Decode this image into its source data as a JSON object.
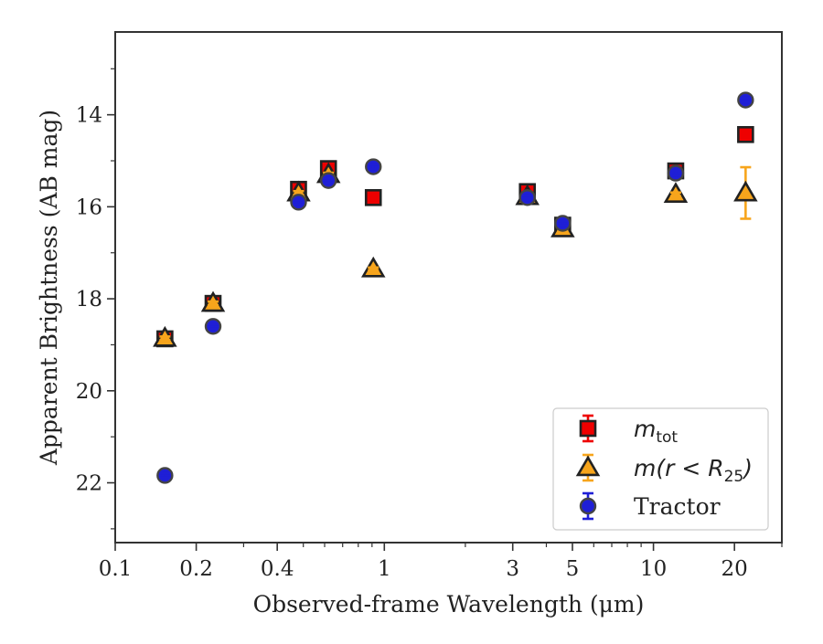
{
  "chart_data": {
    "type": "scatter",
    "xlabel": "Observed-frame Wavelength (μm)",
    "ylabel": "Apparent Brightness (AB mag)",
    "x_scale": "log",
    "y_inverted": true,
    "xlim": [
      0.1,
      30
    ],
    "ylim": [
      23.3,
      12.2
    ],
    "x_ticks": [
      {
        "value": 0.1,
        "label": "0.1"
      },
      {
        "value": 0.2,
        "label": "0.2"
      },
      {
        "value": 0.4,
        "label": "0.4"
      },
      {
        "value": 1,
        "label": "1"
      },
      {
        "value": 3,
        "label": "3"
      },
      {
        "value": 5,
        "label": "5"
      },
      {
        "value": 10,
        "label": "10"
      },
      {
        "value": 20,
        "label": "20"
      }
    ],
    "x_minor_ticks": [
      0.3,
      0.5,
      0.6,
      0.7,
      0.8,
      0.9,
      2,
      4,
      6,
      7,
      8,
      9,
      30
    ],
    "y_ticks": [
      {
        "value": 14,
        "label": "14"
      },
      {
        "value": 16,
        "label": "16"
      },
      {
        "value": 18,
        "label": "18"
      },
      {
        "value": 20,
        "label": "20"
      },
      {
        "value": 22,
        "label": "22"
      }
    ],
    "y_minor_ticks": [
      13,
      15,
      17,
      19,
      21,
      23
    ],
    "grid": false,
    "legend_position": "lower-right",
    "series": [
      {
        "name": "m_tot",
        "legend_main": "m",
        "legend_sub": "tot",
        "marker": "square",
        "color": "#ee0000",
        "points": [
          {
            "x": 0.153,
            "y": 18.87,
            "err": 0.04
          },
          {
            "x": 0.231,
            "y": 18.1,
            "err": 0.04
          },
          {
            "x": 0.48,
            "y": 15.62,
            "err": 0.04
          },
          {
            "x": 0.62,
            "y": 15.17,
            "err": 0.04
          },
          {
            "x": 0.91,
            "y": 15.8,
            "err": 0.03
          },
          {
            "x": 3.4,
            "y": 15.67,
            "err": 0.04
          },
          {
            "x": 4.6,
            "y": 16.4,
            "err": 0.04
          },
          {
            "x": 12.1,
            "y": 15.22,
            "err": 0.04
          },
          {
            "x": 22.0,
            "y": 14.43,
            "err": 0.03
          }
        ]
      },
      {
        "name": "m(r < R_25)",
        "legend_main": "m(r < R",
        "legend_sub": "25",
        "legend_close": ")",
        "marker": "triangle",
        "color": "#f7a51c",
        "points": [
          {
            "x": 0.153,
            "y": 18.86,
            "err": 0.04
          },
          {
            "x": 0.231,
            "y": 18.1,
            "err": 0.04
          },
          {
            "x": 0.48,
            "y": 15.7,
            "err": 0.04
          },
          {
            "x": 0.62,
            "y": 15.3,
            "err": 0.04
          },
          {
            "x": 0.91,
            "y": 17.35,
            "err": 0.03
          },
          {
            "x": 3.4,
            "y": 15.78,
            "err": 0.04
          },
          {
            "x": 4.6,
            "y": 16.48,
            "err": 0.04
          },
          {
            "x": 12.1,
            "y": 15.73,
            "err": 0.04
          },
          {
            "x": 22.0,
            "y": 15.7,
            "err": 0.56
          }
        ]
      },
      {
        "name": "Tractor",
        "legend_main": "Tractor",
        "marker": "circle",
        "color": "#1f1fd6",
        "points": [
          {
            "x": 0.153,
            "y": 21.84,
            "err": 0.05
          },
          {
            "x": 0.231,
            "y": 18.6,
            "err": 0.05
          },
          {
            "x": 0.48,
            "y": 15.9,
            "err": 0.05
          },
          {
            "x": 0.62,
            "y": 15.43,
            "err": 0.05
          },
          {
            "x": 0.91,
            "y": 15.13,
            "err": 0.05
          },
          {
            "x": 3.4,
            "y": 15.8,
            "err": 0.05
          },
          {
            "x": 4.6,
            "y": 16.36,
            "err": 0.05
          },
          {
            "x": 12.1,
            "y": 15.27,
            "err": 0.05
          },
          {
            "x": 22.0,
            "y": 13.68,
            "err": 0.05
          }
        ]
      }
    ]
  }
}
